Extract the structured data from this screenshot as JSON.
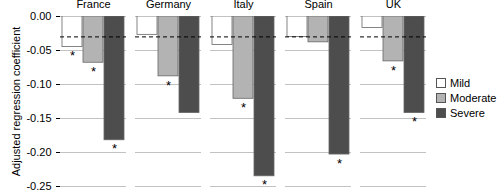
{
  "chart_data": {
    "type": "bar",
    "y_label": "Adjusted regression coefficient",
    "categories": [
      "France",
      "Germany",
      "Italy",
      "Spain",
      "UK"
    ],
    "series": [
      {
        "name": "Mild",
        "color": "#ffffff",
        "values": [
          -0.045,
          -0.027,
          -0.042,
          -0.03,
          -0.017
        ]
      },
      {
        "name": "Moderate",
        "color": "#b3b3b3",
        "values": [
          -0.068,
          -0.088,
          -0.121,
          -0.038,
          -0.066
        ]
      },
      {
        "name": "Severe",
        "color": "#4d4d4d",
        "values": [
          -0.182,
          -0.142,
          -0.235,
          -0.203,
          -0.142
        ]
      }
    ],
    "ylim": [
      -0.25,
      0
    ],
    "yticks": [
      {
        "value": 0,
        "label": "0.00"
      },
      {
        "value": -0.05,
        "label": "-0.05"
      },
      {
        "value": -0.1,
        "label": "-0.10"
      },
      {
        "value": -0.15,
        "label": "-0.15"
      },
      {
        "value": -0.2,
        "label": "-0.20"
      },
      {
        "value": -0.25,
        "label": "-0.25"
      }
    ],
    "grid": true,
    "legend": "right",
    "reference_line": {
      "value": -0.03,
      "line_style": "dashed"
    },
    "annotations": [
      {
        "category": "France",
        "series": "Mild",
        "text": "*"
      },
      {
        "category": "France",
        "series": "Moderate",
        "text": "*"
      },
      {
        "category": "France",
        "series": "Severe",
        "text": "*"
      },
      {
        "category": "Germany",
        "series": "Moderate",
        "text": "*"
      },
      {
        "category": "Italy",
        "series": "Moderate",
        "text": "*"
      },
      {
        "category": "Italy",
        "series": "Severe",
        "text": "*"
      },
      {
        "category": "Spain",
        "series": "Severe",
        "text": "*"
      },
      {
        "category": "UK",
        "series": "Moderate",
        "text": "*"
      },
      {
        "category": "UK",
        "series": "Severe",
        "text": "*"
      }
    ]
  }
}
